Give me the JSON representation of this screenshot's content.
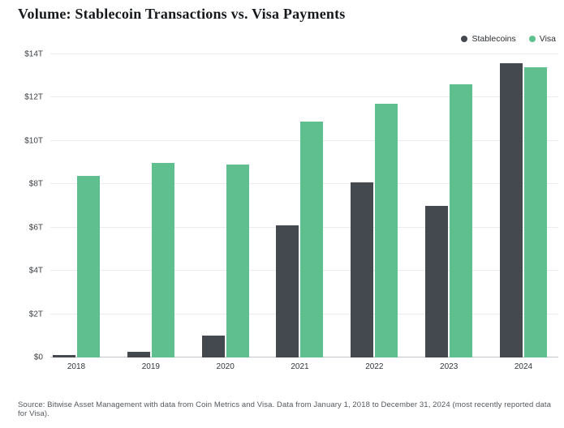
{
  "title": "Volume: Stablecoin Transactions vs. Visa Payments",
  "source": "Source: Bitwise Asset Management with data from Coin Metrics and Visa. Data from January 1, 2018 to December 31, 2024 (most recently reported data for Visa).",
  "colors": {
    "stablecoins": "#43494E",
    "visa": "#60BF8E",
    "grid": "#ECECEC",
    "zero_axis": "#C2C6CA",
    "background": "#FFFFFF"
  },
  "chart_data": {
    "type": "bar",
    "title": "Volume: Stablecoin Transactions vs. Visa Payments",
    "categories": [
      "2018",
      "2019",
      "2020",
      "2021",
      "2022",
      "2023",
      "2024"
    ],
    "series": [
      {
        "name": "Stablecoins",
        "color": "#43494E",
        "values": [
          0.1,
          0.25,
          1.0,
          6.1,
          8.1,
          7.0,
          13.6
        ]
      },
      {
        "name": "Visa",
        "color": "#60BF8E",
        "values": [
          8.4,
          9.0,
          8.9,
          10.9,
          11.7,
          12.6,
          13.4
        ]
      }
    ],
    "xlabel": "",
    "ylabel": "",
    "unit": "trillion USD",
    "ylim": [
      0,
      14
    ],
    "yticks": [
      {
        "value": 0,
        "label": "$0"
      },
      {
        "value": 2,
        "label": "$2T"
      },
      {
        "value": 4,
        "label": "$4T"
      },
      {
        "value": 6,
        "label": "$6T"
      },
      {
        "value": 8,
        "label": "$8T"
      },
      {
        "value": 10,
        "label": "$10T"
      },
      {
        "value": 12,
        "label": "$12T"
      },
      {
        "value": 14,
        "label": "$14T"
      }
    ],
    "grid": true,
    "legend_position": "top-right"
  }
}
